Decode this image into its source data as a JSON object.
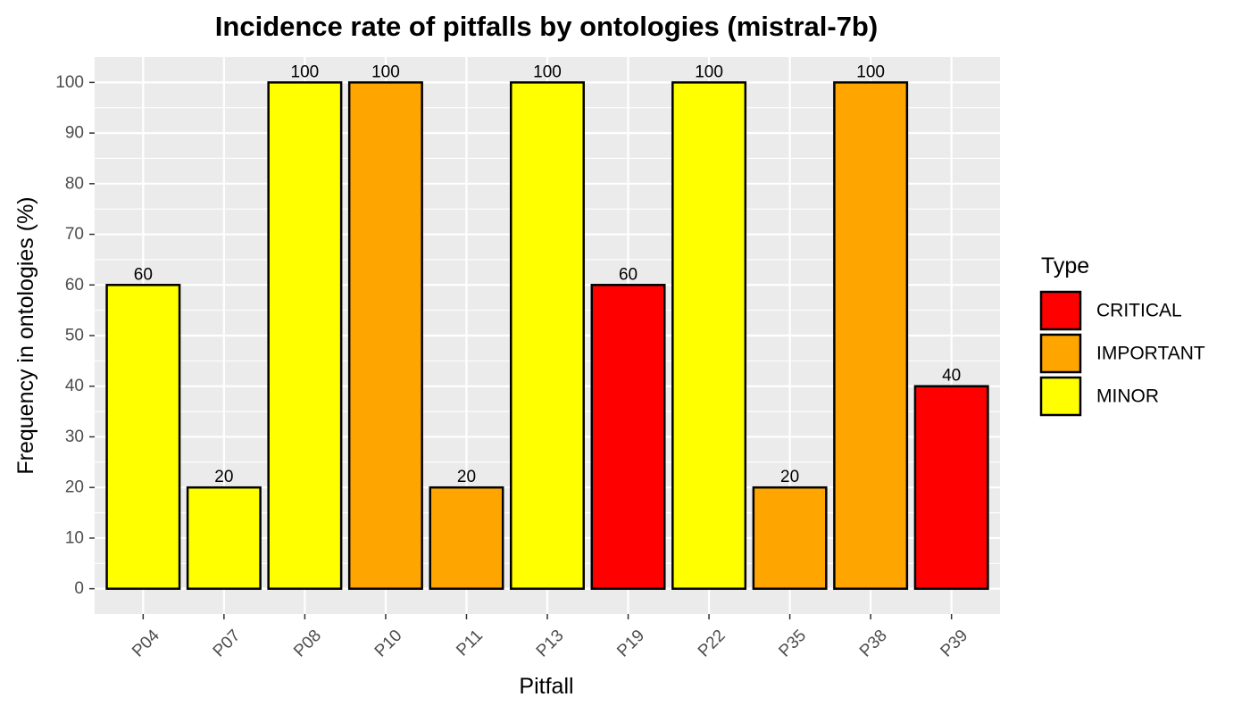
{
  "chart_data": {
    "type": "bar",
    "title": "Incidence rate of pitfalls by ontologies (mistral-7b)",
    "xlabel": "Pitfall",
    "ylabel": "Frequency in ontologies (%)",
    "ylim": [
      -5,
      105
    ],
    "yticks": [
      0,
      10,
      20,
      30,
      40,
      50,
      60,
      70,
      80,
      90,
      100
    ],
    "grid": true,
    "legend": {
      "title": "Type",
      "placement": "right",
      "entries": [
        {
          "label": "CRITICAL",
          "color": "#ff0000"
        },
        {
          "label": "IMPORTANT",
          "color": "#ffa500"
        },
        {
          "label": "MINOR",
          "color": "#ffff00"
        }
      ]
    },
    "categories": [
      "P04",
      "P07",
      "P08",
      "P10",
      "P11",
      "P13",
      "P19",
      "P22",
      "P35",
      "P38",
      "P39"
    ],
    "values": [
      60,
      20,
      100,
      100,
      20,
      100,
      60,
      100,
      20,
      100,
      40
    ],
    "types": [
      "MINOR",
      "MINOR",
      "MINOR",
      "IMPORTANT",
      "IMPORTANT",
      "MINOR",
      "CRITICAL",
      "MINOR",
      "IMPORTANT",
      "IMPORTANT",
      "CRITICAL"
    ],
    "data_labels": [
      "60",
      "20",
      "100",
      "100",
      "20",
      "100",
      "60",
      "100",
      "20",
      "100",
      "40"
    ]
  },
  "colors": {
    "panel_background": "#ebebeb",
    "grid": "#ffffff",
    "bar_outline": "#000000"
  }
}
